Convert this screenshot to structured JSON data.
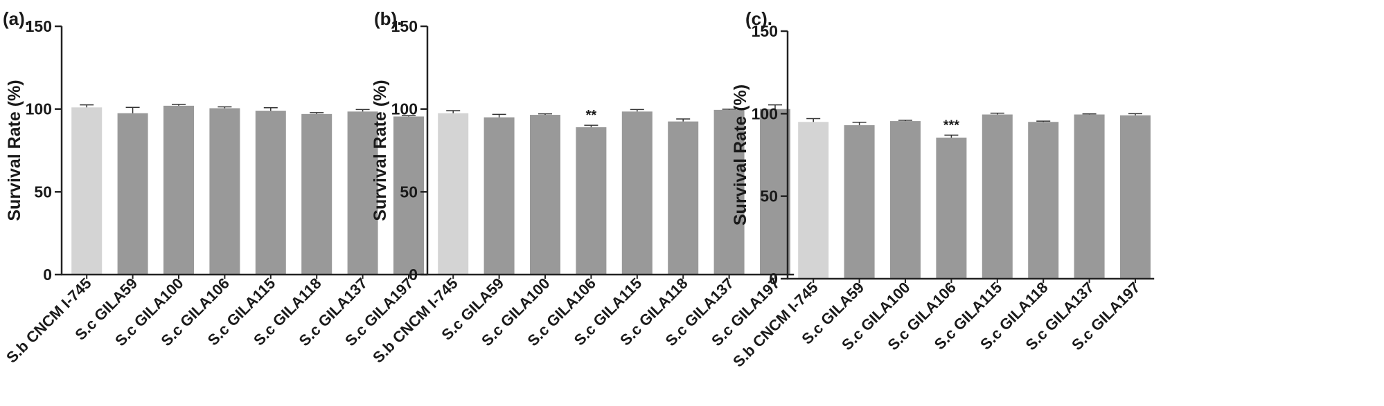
{
  "chart_data": [
    {
      "type": "bar",
      "panel_label": "(a).",
      "ylabel": "Survival Rate (%)",
      "ylim": [
        0,
        150
      ],
      "yticks": [
        "0",
        "50",
        "100",
        "150"
      ],
      "categories": [
        "S.b CNCM I-745",
        "S.c GILA59",
        "S.c GILA100",
        "S.c GILA106",
        "S.c GILA115",
        "S.c GILA118",
        "S.c GILA137",
        "S.c GILA197"
      ],
      "values": [
        101,
        97.5,
        102,
        100.5,
        99,
        97,
        98.5,
        95.5
      ],
      "errors": [
        1.5,
        3.5,
        0.8,
        0.8,
        1.8,
        0.8,
        1.2,
        0.5
      ],
      "annotations": [
        "",
        "",
        "",
        "",
        "",
        "",
        "",
        ""
      ],
      "colors": [
        "#d4d4d4",
        "#999999",
        "#999999",
        "#999999",
        "#999999",
        "#999999",
        "#999999",
        "#999999"
      ]
    },
    {
      "type": "bar",
      "panel_label": "(b).",
      "ylabel": "Survival Rate (%)",
      "ylim": [
        0,
        150
      ],
      "yticks": [
        "0",
        "50",
        "100",
        "150"
      ],
      "categories": [
        "S.b CNCM I-745",
        "S.c GILA59",
        "S.c GILA100",
        "S.c GILA106",
        "S.c GILA115",
        "S.c GILA118",
        "S.c GILA137",
        "S.c GILA197"
      ],
      "values": [
        97.5,
        95,
        96.5,
        89,
        98.5,
        92.5,
        99.5,
        100
      ],
      "errors": [
        1.5,
        1.8,
        0.6,
        1.2,
        1.2,
        1.5,
        0.4,
        2.5
      ],
      "annotations": [
        "",
        "",
        "",
        "**",
        "",
        "",
        "",
        ""
      ],
      "colors": [
        "#d4d4d4",
        "#999999",
        "#999999",
        "#999999",
        "#999999",
        "#999999",
        "#999999",
        "#999999"
      ]
    },
    {
      "type": "bar",
      "panel_label": "(c).",
      "ylabel": "Survival Rate (%)",
      "ylim": [
        0,
        150
      ],
      "yticks": [
        "0",
        "50",
        "100",
        "150"
      ],
      "categories": [
        "S.b CNCM I-745",
        "S.c GILA59",
        "S.c GILA100",
        "S.c GILA106",
        "S.c GILA115",
        "S.c GILA118",
        "S.c GILA137",
        "S.c GILA197"
      ],
      "values": [
        95,
        93,
        95.5,
        85.5,
        99.5,
        95,
        99.5,
        99
      ],
      "errors": [
        2,
        1.8,
        0.5,
        1.5,
        0.8,
        0.5,
        0.4,
        1
      ],
      "annotations": [
        "",
        "",
        "",
        "***",
        "",
        "",
        "",
        ""
      ],
      "colors": [
        "#d4d4d4",
        "#999999",
        "#999999",
        "#999999",
        "#999999",
        "#999999",
        "#999999",
        "#999999"
      ]
    }
  ]
}
